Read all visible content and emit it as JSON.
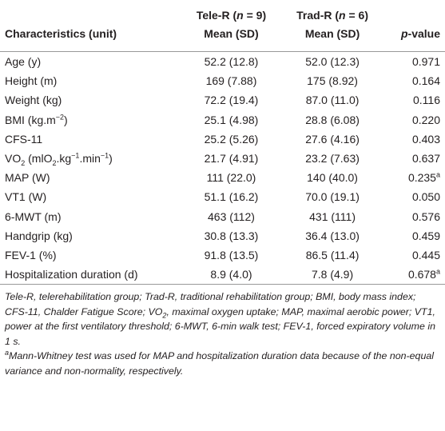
{
  "table": {
    "header": {
      "group_1": [
        "Tele-R (",
        "n",
        " = 9)"
      ],
      "group_2": [
        "Trad-R (",
        "n",
        " = 6)"
      ],
      "columns": [
        "Characteristics (unit)",
        "Mean (SD)",
        "Mean (SD)",
        [
          "p",
          "-value"
        ]
      ]
    },
    "rows": [
      [
        "Age (y)",
        "52.2 (12.8)",
        "52.0 (12.3)",
        "0.971"
      ],
      [
        "Height (m)",
        "169 (7.88)",
        "175 (8.92)",
        "0.164"
      ],
      [
        "Weight (kg)",
        "72.2 (19.4)",
        "87.0 (11.0)",
        "0.116"
      ],
      [
        [
          "BMI (kg.m",
          "−2",
          ")"
        ],
        "25.1 (4.98)",
        "28.8 (6.08)",
        "0.220"
      ],
      [
        "CFS-11",
        "25.2 (5.26)",
        "27.6 (4.16)",
        "0.403"
      ],
      [
        [
          "VO",
          "2",
          " (mlO",
          "2",
          ".kg",
          "−1",
          ".min",
          "−1",
          ")"
        ],
        "21.7 (4.91)",
        "23.2 (7.63)",
        "0.637"
      ],
      [
        "MAP (W)",
        "111 (22.0)",
        "140 (40.0)",
        [
          "0.235",
          "a"
        ]
      ],
      [
        "VT1 (W)",
        "51.1 (16.2)",
        "70.0 (19.1)",
        "0.050"
      ],
      [
        "6-MWT (m)",
        "463 (112)",
        "431 (111)",
        "0.576"
      ],
      [
        "Handgrip (kg)",
        "30.8 (13.3)",
        "36.4 (13.0)",
        "0.459"
      ],
      [
        "FEV-1 (%)",
        "91.8 (13.5)",
        "86.5 (11.4)",
        "0.445"
      ],
      [
        "Hospitalization duration (d)",
        "8.9 (4.0)",
        "7.8 (4.9)",
        [
          "0.678",
          "a"
        ]
      ]
    ]
  },
  "footnotes": {
    "abbreviations": [
      "Tele-R, telerehabilitation group; Trad-R, traditional rehabilitation group; BMI, body mass index; CFS-11, Chalder Fatigue Score; VO",
      "2",
      ", maximal oxygen uptake; MAP, maximal aerobic power; VT1, power at the first ventilatory threshold; 6-MWT, 6-min walk test; FEV-1, forced expiratory volume in 1 s."
    ],
    "note_a": [
      "a",
      "Mann-Whitney test was used for MAP and hospitalization duration data because of the non-equal variance and non-normality, respectively."
    ]
  }
}
